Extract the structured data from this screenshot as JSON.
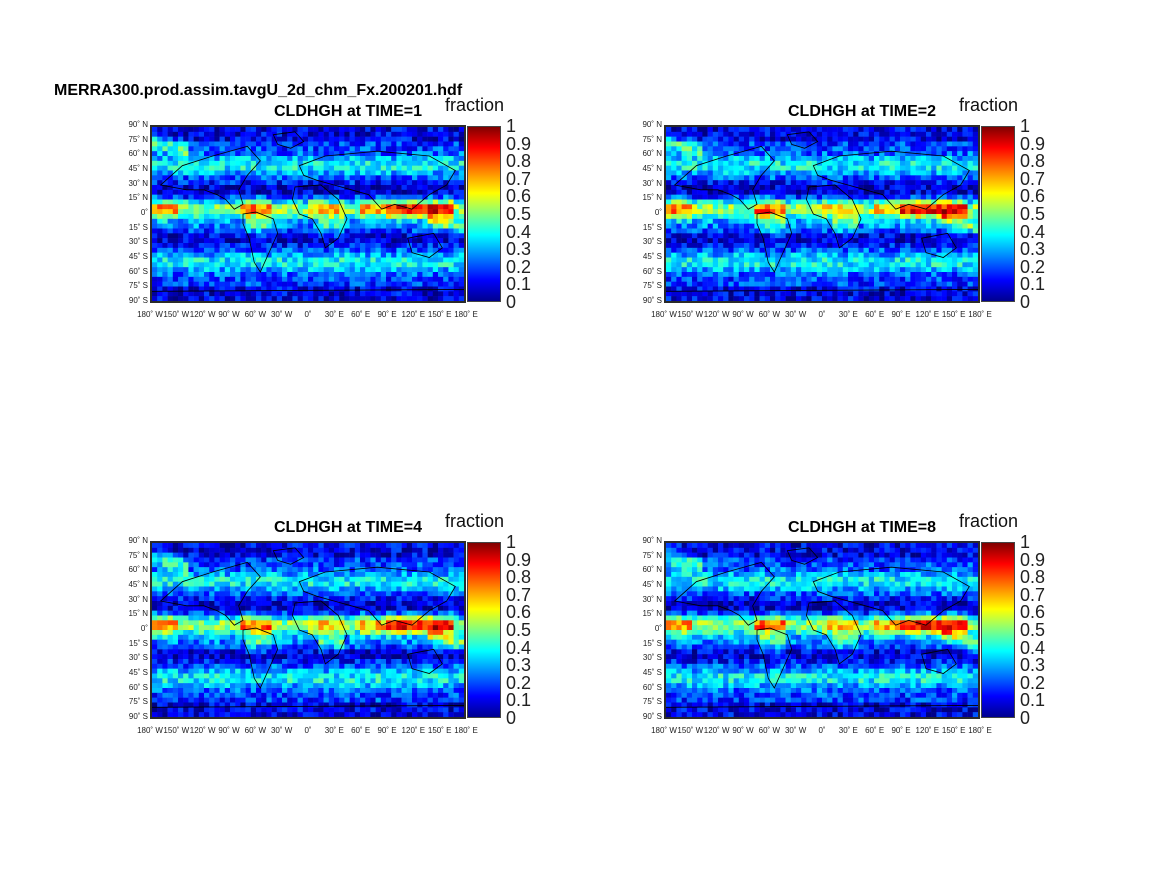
{
  "figure": {
    "file_title": "MERRA300.prod.assim.tavgU_2d_chm_Fx.200201.hdf",
    "variable": "CLDHGH",
    "colorbar_label": "fraction",
    "colorbar_ticks": [
      "1",
      "0.9",
      "0.8",
      "0.7",
      "0.6",
      "0.5",
      "0.4",
      "0.3",
      "0.2",
      "0.1",
      "0"
    ],
    "colormap": "jet",
    "lat_labels": [
      "90˚ N",
      "75˚ N",
      "60˚ N",
      "45˚ N",
      "30˚ N",
      "15˚ N",
      "0˚",
      "15˚ S",
      "30˚ S",
      "45˚ S",
      "60˚ S",
      "75˚ S",
      "90˚ S"
    ],
    "lon_labels": [
      "180˚ W",
      "150˚ W",
      "120˚ W",
      "90˚ W",
      "60˚ W",
      "30˚ W",
      "0˚",
      "30˚ E",
      "60˚ E",
      "90˚ E",
      "120˚ E",
      "150˚ E",
      "180˚ E"
    ]
  },
  "panels": [
    {
      "title": "CLDHGH at TIME=1"
    },
    {
      "title": "CLDHGH at TIME=2"
    },
    {
      "title": "CLDHGH at TIME=4"
    },
    {
      "title": "CLDHGH at TIME=8"
    }
  ]
}
